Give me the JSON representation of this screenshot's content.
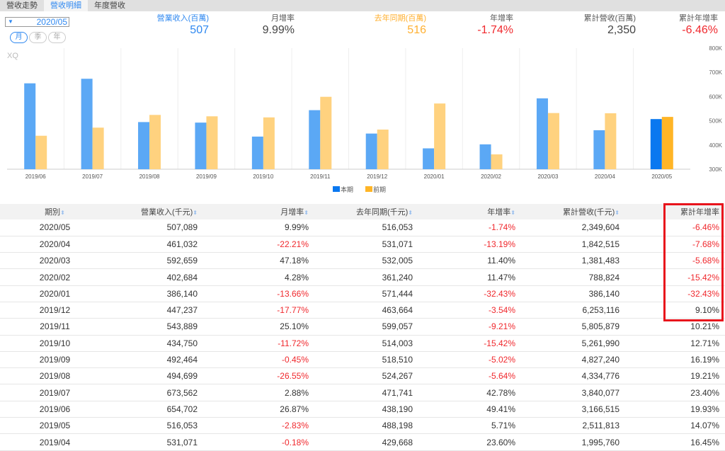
{
  "tabs": [
    "營收走勢",
    "營收明細",
    "年度營收"
  ],
  "period_select": "2020/05",
  "period_pills": [
    "月",
    "季",
    "年"
  ],
  "stats": [
    {
      "label": "營業收入(百萬)",
      "value": "507"
    },
    {
      "label": "月增率",
      "value": "9.99%"
    },
    {
      "label": "去年同期(百萬)",
      "value": "516"
    },
    {
      "label": "年增率",
      "value": "-1.74%"
    },
    {
      "label": "累計營收(百萬)",
      "value": "2,350"
    },
    {
      "label": "累計年增率",
      "value": "-6.46%"
    }
  ],
  "colors": {
    "current": "#5ba8f5",
    "current_hl": "#0a78f0",
    "prior": "#ffd27f",
    "prior_hl": "#ffb526",
    "accent": "#2f88f0",
    "negative": "#f0282d"
  },
  "chart_data": {
    "type": "bar",
    "watermark": "XQ",
    "categories": [
      "2019/06",
      "2019/07",
      "2019/08",
      "2019/09",
      "2019/10",
      "2019/11",
      "2019/12",
      "2020/01",
      "2020/02",
      "2020/03",
      "2020/04",
      "2020/05"
    ],
    "series": [
      {
        "name": "本期",
        "values": [
          654.702,
          673.562,
          494.699,
          492.464,
          434.75,
          543.889,
          447.237,
          386.14,
          402.684,
          592.659,
          461.032,
          507.089
        ]
      },
      {
        "name": "前期",
        "values": [
          438.19,
          471.741,
          524.267,
          518.51,
          514.003,
          599.057,
          463.664,
          571.444,
          361.24,
          532.005,
          531.071,
          516.053
        ]
      }
    ],
    "yticks": [
      "800K",
      "700K",
      "600K",
      "500K",
      "400K",
      "300K"
    ],
    "ylim": [
      300,
      800
    ],
    "yunit": "K",
    "legend": "bottom-center"
  },
  "table": {
    "headers": [
      "期別",
      "營業收入(千元)",
      "月增率",
      "去年同期(千元)",
      "年增率",
      "累計營收(千元)",
      "累計年增率"
    ],
    "rows": [
      [
        "2020/05",
        "507,089",
        "9.99%",
        "516,053",
        "-1.74%",
        "2,349,604",
        "-6.46%"
      ],
      [
        "2020/04",
        "461,032",
        "-22.21%",
        "531,071",
        "-13.19%",
        "1,842,515",
        "-7.68%"
      ],
      [
        "2020/03",
        "592,659",
        "47.18%",
        "532,005",
        "11.40%",
        "1,381,483",
        "-5.68%"
      ],
      [
        "2020/02",
        "402,684",
        "4.28%",
        "361,240",
        "11.47%",
        "788,824",
        "-15.42%"
      ],
      [
        "2020/01",
        "386,140",
        "-13.66%",
        "571,444",
        "-32.43%",
        "386,140",
        "-32.43%"
      ],
      [
        "2019/12",
        "447,237",
        "-17.77%",
        "463,664",
        "-3.54%",
        "6,253,116",
        "9.10%"
      ],
      [
        "2019/11",
        "543,889",
        "25.10%",
        "599,057",
        "-9.21%",
        "5,805,879",
        "10.21%"
      ],
      [
        "2019/10",
        "434,750",
        "-11.72%",
        "514,003",
        "-15.42%",
        "5,261,990",
        "12.71%"
      ],
      [
        "2019/09",
        "492,464",
        "-0.45%",
        "518,510",
        "-5.02%",
        "4,827,240",
        "16.19%"
      ],
      [
        "2019/08",
        "494,699",
        "-26.55%",
        "524,267",
        "-5.64%",
        "4,334,776",
        "19.21%"
      ],
      [
        "2019/07",
        "673,562",
        "2.88%",
        "471,741",
        "42.78%",
        "3,840,077",
        "23.40%"
      ],
      [
        "2019/06",
        "654,702",
        "26.87%",
        "438,190",
        "49.41%",
        "3,166,515",
        "19.93%"
      ],
      [
        "2019/05",
        "516,053",
        "-2.83%",
        "488,198",
        "5.71%",
        "2,511,813",
        "14.07%"
      ],
      [
        "2019/04",
        "531,071",
        "-0.18%",
        "429,668",
        "23.60%",
        "1,995,760",
        "16.45%"
      ]
    ]
  }
}
